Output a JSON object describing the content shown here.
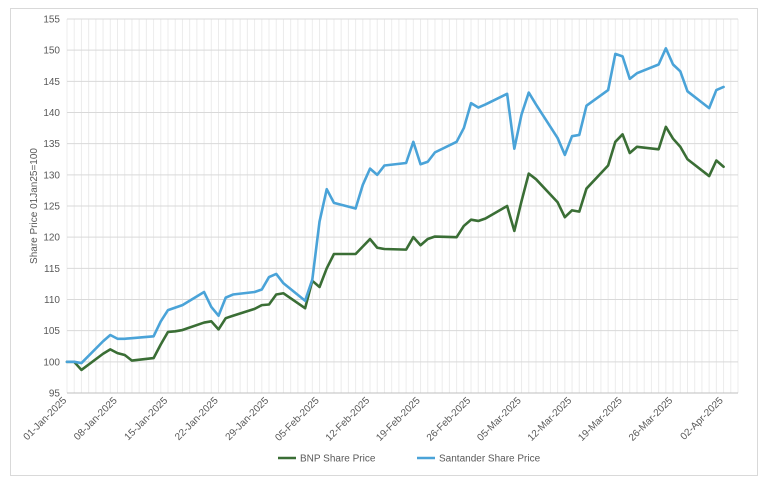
{
  "chart_data": {
    "type": "line",
    "title": "",
    "xlabel": "",
    "ylabel": "Share Price 01Jan25=100",
    "ylim": [
      95,
      155
    ],
    "yticks": [
      95,
      100,
      105,
      110,
      115,
      120,
      125,
      130,
      135,
      140,
      145,
      150,
      155
    ],
    "xlim": [
      "2025-01-01",
      "2025-04-04"
    ],
    "xticks": [
      "2025-01-01",
      "2025-01-08",
      "2025-01-15",
      "2025-01-22",
      "2025-01-29",
      "2025-02-05",
      "2025-02-12",
      "2025-02-19",
      "2025-02-26",
      "2025-03-05",
      "2025-03-12",
      "2025-03-19",
      "2025-03-26",
      "2025-04-02"
    ],
    "xtick_labels": [
      "01-Jan-2025",
      "08-Jan-2025",
      "15-Jan-2025",
      "22-Jan-2025",
      "29-Jan-2025",
      "05-Feb-2025",
      "12-Feb-2025",
      "19-Feb-2025",
      "26-Feb-2025",
      "05-Mar-2025",
      "12-Mar-2025",
      "19-Mar-2025",
      "26-Mar-2025",
      "02-Apr-2025"
    ],
    "grid": true,
    "legend_position": "bottom",
    "series": [
      {
        "name": "BNP Share Price",
        "color": "#3a6e35",
        "points": [
          [
            "2025-01-01",
            100.0
          ],
          [
            "2025-01-02",
            100.0
          ],
          [
            "2025-01-03",
            98.7
          ],
          [
            "2025-01-06",
            101.3
          ],
          [
            "2025-01-07",
            102.0
          ],
          [
            "2025-01-08",
            101.4
          ],
          [
            "2025-01-09",
            101.1
          ],
          [
            "2025-01-10",
            100.2
          ],
          [
            "2025-01-13",
            100.6
          ],
          [
            "2025-01-14",
            102.8
          ],
          [
            "2025-01-15",
            104.8
          ],
          [
            "2025-01-16",
            104.9
          ],
          [
            "2025-01-17",
            105.1
          ],
          [
            "2025-01-20",
            106.3
          ],
          [
            "2025-01-21",
            106.5
          ],
          [
            "2025-01-22",
            105.2
          ],
          [
            "2025-01-23",
            107.0
          ],
          [
            "2025-01-24",
            107.4
          ],
          [
            "2025-01-27",
            108.5
          ],
          [
            "2025-01-28",
            109.1
          ],
          [
            "2025-01-29",
            109.2
          ],
          [
            "2025-01-30",
            110.8
          ],
          [
            "2025-01-31",
            111.0
          ],
          [
            "2025-02-03",
            108.6
          ],
          [
            "2025-02-04",
            113.0
          ],
          [
            "2025-02-05",
            112.0
          ],
          [
            "2025-02-06",
            115.0
          ],
          [
            "2025-02-07",
            117.3
          ],
          [
            "2025-02-10",
            117.3
          ],
          [
            "2025-02-11",
            118.5
          ],
          [
            "2025-02-12",
            119.7
          ],
          [
            "2025-02-13",
            118.3
          ],
          [
            "2025-02-14",
            118.1
          ],
          [
            "2025-02-17",
            118.0
          ],
          [
            "2025-02-18",
            120.0
          ],
          [
            "2025-02-19",
            118.7
          ],
          [
            "2025-02-20",
            119.7
          ],
          [
            "2025-02-21",
            120.1
          ],
          [
            "2025-02-24",
            120.0
          ],
          [
            "2025-02-25",
            121.8
          ],
          [
            "2025-02-26",
            122.8
          ],
          [
            "2025-02-27",
            122.6
          ],
          [
            "2025-02-28",
            123.0
          ],
          [
            "2025-03-03",
            125.0
          ],
          [
            "2025-03-04",
            121.0
          ],
          [
            "2025-03-05",
            125.8
          ],
          [
            "2025-03-06",
            130.2
          ],
          [
            "2025-03-07",
            129.3
          ],
          [
            "2025-03-10",
            125.6
          ],
          [
            "2025-03-11",
            123.2
          ],
          [
            "2025-03-12",
            124.3
          ],
          [
            "2025-03-13",
            124.1
          ],
          [
            "2025-03-14",
            127.8
          ],
          [
            "2025-03-17",
            131.5
          ],
          [
            "2025-03-18",
            135.3
          ],
          [
            "2025-03-19",
            136.5
          ],
          [
            "2025-03-20",
            133.5
          ],
          [
            "2025-03-21",
            134.5
          ],
          [
            "2025-03-24",
            134.1
          ],
          [
            "2025-03-25",
            137.7
          ],
          [
            "2025-03-26",
            135.8
          ],
          [
            "2025-03-27",
            134.5
          ],
          [
            "2025-03-28",
            132.5
          ],
          [
            "2025-03-31",
            129.8
          ],
          [
            "2025-04-01",
            132.3
          ],
          [
            "2025-04-02",
            131.3
          ]
        ]
      },
      {
        "name": "Santander Share Price",
        "color": "#4aa3d8",
        "points": [
          [
            "2025-01-01",
            100.0
          ],
          [
            "2025-01-02",
            100.0
          ],
          [
            "2025-01-03",
            99.8
          ],
          [
            "2025-01-06",
            103.3
          ],
          [
            "2025-01-07",
            104.3
          ],
          [
            "2025-01-08",
            103.7
          ],
          [
            "2025-01-09",
            103.7
          ],
          [
            "2025-01-10",
            103.8
          ],
          [
            "2025-01-13",
            104.1
          ],
          [
            "2025-01-14",
            106.5
          ],
          [
            "2025-01-15",
            108.3
          ],
          [
            "2025-01-16",
            108.7
          ],
          [
            "2025-01-17",
            109.1
          ],
          [
            "2025-01-20",
            111.2
          ],
          [
            "2025-01-21",
            108.8
          ],
          [
            "2025-01-22",
            107.4
          ],
          [
            "2025-01-23",
            110.3
          ],
          [
            "2025-01-24",
            110.8
          ],
          [
            "2025-01-27",
            111.2
          ],
          [
            "2025-01-28",
            111.6
          ],
          [
            "2025-01-29",
            113.6
          ],
          [
            "2025-01-30",
            114.1
          ],
          [
            "2025-01-31",
            112.6
          ],
          [
            "2025-02-03",
            109.8
          ],
          [
            "2025-02-04",
            113.2
          ],
          [
            "2025-02-05",
            122.5
          ],
          [
            "2025-02-06",
            127.7
          ],
          [
            "2025-02-07",
            125.5
          ],
          [
            "2025-02-10",
            124.6
          ],
          [
            "2025-02-11",
            128.4
          ],
          [
            "2025-02-12",
            131.0
          ],
          [
            "2025-02-13",
            130.0
          ],
          [
            "2025-02-14",
            131.5
          ],
          [
            "2025-02-17",
            131.9
          ],
          [
            "2025-02-18",
            135.3
          ],
          [
            "2025-02-19",
            131.7
          ],
          [
            "2025-02-20",
            132.1
          ],
          [
            "2025-02-21",
            133.6
          ],
          [
            "2025-02-24",
            135.3
          ],
          [
            "2025-02-25",
            137.5
          ],
          [
            "2025-02-26",
            141.5
          ],
          [
            "2025-02-27",
            140.8
          ],
          [
            "2025-02-28",
            141.3
          ],
          [
            "2025-03-03",
            143.0
          ],
          [
            "2025-03-04",
            134.2
          ],
          [
            "2025-03-05",
            139.7
          ],
          [
            "2025-03-06",
            143.2
          ],
          [
            "2025-03-07",
            141.3
          ],
          [
            "2025-03-10",
            135.9
          ],
          [
            "2025-03-11",
            133.2
          ],
          [
            "2025-03-12",
            136.2
          ],
          [
            "2025-03-13",
            136.4
          ],
          [
            "2025-03-14",
            141.1
          ],
          [
            "2025-03-17",
            143.6
          ],
          [
            "2025-03-18",
            149.4
          ],
          [
            "2025-03-19",
            149.0
          ],
          [
            "2025-03-20",
            145.4
          ],
          [
            "2025-03-21",
            146.3
          ],
          [
            "2025-03-24",
            147.7
          ],
          [
            "2025-03-25",
            150.3
          ],
          [
            "2025-03-26",
            147.7
          ],
          [
            "2025-03-27",
            146.6
          ],
          [
            "2025-03-28",
            143.4
          ],
          [
            "2025-03-31",
            140.7
          ],
          [
            "2025-04-01",
            143.6
          ],
          [
            "2025-04-02",
            144.1
          ]
        ]
      }
    ]
  }
}
